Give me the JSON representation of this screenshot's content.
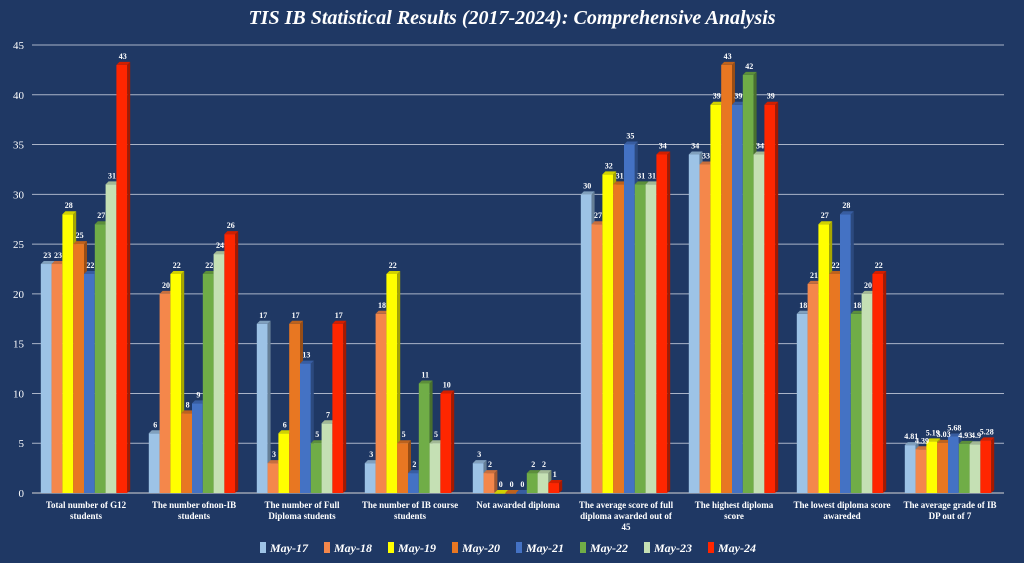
{
  "chart_data": {
    "type": "bar",
    "title": "TIS IB Statistical Results (2017-2024): Comprehensive Analysis",
    "xlabel": "",
    "ylabel": "",
    "ylim": [
      0,
      45
    ],
    "yticks": [
      0,
      5,
      10,
      15,
      20,
      25,
      30,
      35,
      40,
      45
    ],
    "grid": true,
    "legend_position": "bottom",
    "categories": [
      [
        "Total number of G12",
        "students"
      ],
      [
        "The number ofnon-IB",
        "students"
      ],
      [
        "The number of Full",
        "Diploma students"
      ],
      [
        "The number of IB course",
        "students"
      ],
      [
        "Not awarded diploma"
      ],
      [
        "The average score of full",
        "diploma awarded out of",
        "45"
      ],
      [
        "The highest diploma",
        "score"
      ],
      [
        "The lowest diploma score",
        "awareded"
      ],
      [
        "The average grade of IB",
        "DP out of 7"
      ]
    ],
    "series": [
      {
        "name": "May-17",
        "color": "#9dc3e6",
        "values": [
          23,
          6,
          17,
          3,
          3,
          30,
          34,
          18,
          4.81
        ],
        "labels": [
          "23",
          "6",
          "17",
          "3",
          "3",
          "30",
          "34",
          "18",
          "4.81"
        ]
      },
      {
        "name": "May-18",
        "color": "#f4874b",
        "values": [
          23,
          20,
          3,
          18,
          2,
          27,
          33,
          21,
          4.39
        ],
        "labels": [
          "23",
          "20",
          "3",
          "18",
          "2",
          "27",
          "33",
          "21",
          "4.39"
        ]
      },
      {
        "name": "May-19",
        "color": "#ffff00",
        "values": [
          28,
          22,
          6,
          22,
          0,
          32,
          39,
          27,
          5.19
        ],
        "labels": [
          "28",
          "22",
          "6",
          "22",
          "0",
          "32",
          "39",
          "27",
          "5.19"
        ]
      },
      {
        "name": "May-20",
        "color": "#e87722",
        "values": [
          25,
          8,
          17,
          5,
          0,
          31,
          43,
          22,
          5.03
        ],
        "labels": [
          "25",
          "8",
          "17",
          "5",
          "0",
          "31",
          "43",
          "22",
          "5.03"
        ]
      },
      {
        "name": "May-21",
        "color": "#4472c4",
        "values": [
          22,
          9,
          13,
          2,
          0,
          35,
          39,
          28,
          5.68
        ],
        "labels": [
          "22",
          "9",
          "13",
          "2",
          "0",
          "35",
          "39",
          "28",
          "5.68"
        ]
      },
      {
        "name": "May-22",
        "color": "#70ad47",
        "values": [
          27,
          22,
          5,
          11,
          2,
          31,
          42,
          18,
          4.93
        ],
        "labels": [
          "27",
          "22",
          "5",
          "11",
          "2",
          "31",
          "42",
          "18",
          "4.93"
        ]
      },
      {
        "name": "May-23",
        "color": "#c5e0b4",
        "values": [
          31,
          24,
          7,
          5,
          2,
          31,
          34,
          20,
          4.9
        ],
        "labels": [
          "31",
          "24",
          "7",
          "5",
          "2",
          "31",
          "34",
          "20",
          "4.9"
        ]
      },
      {
        "name": "May-24",
        "color": "#ff2600",
        "values": [
          43,
          26,
          17,
          10,
          1,
          34,
          39,
          22,
          5.28
        ],
        "labels": [
          "43",
          "26",
          "17",
          "10",
          "1",
          "34",
          "39",
          "22",
          "5.28"
        ]
      }
    ]
  }
}
